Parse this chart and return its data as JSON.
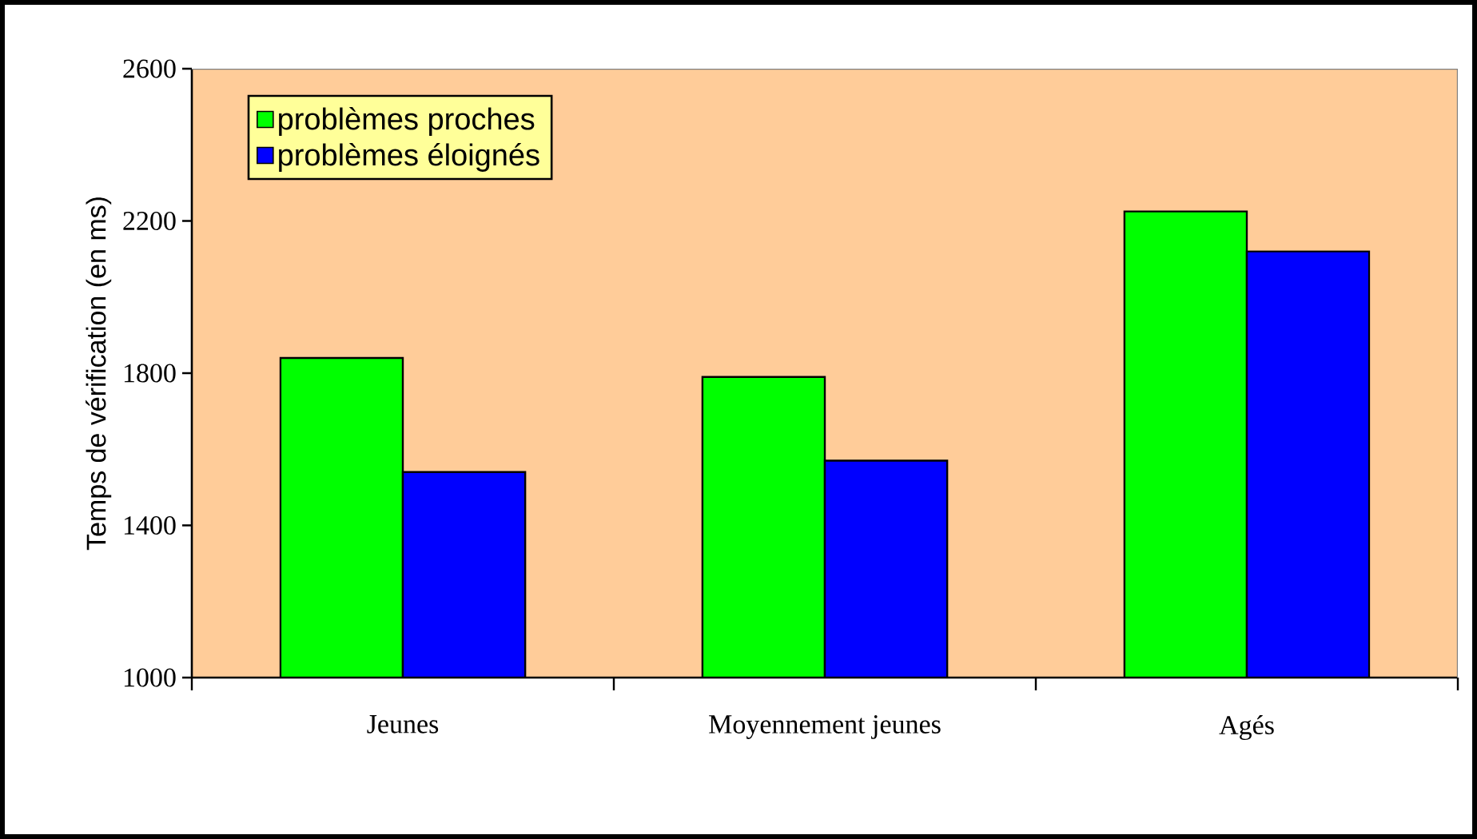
{
  "chart_data": {
    "type": "bar",
    "ylabel": "Temps de vérification (en ms)",
    "categories": [
      "Jeunes",
      "Moyennement jeunes",
      "Agés"
    ],
    "series": [
      {
        "name": "problèmes proches",
        "color": "#00ff00",
        "values": [
          1840,
          1790,
          2225
        ]
      },
      {
        "name": "problèmes éloignés",
        "color": "#0000ff",
        "values": [
          1540,
          1570,
          2120
        ]
      }
    ],
    "ylim": [
      1000,
      2600
    ],
    "yticks": [
      1000,
      1400,
      1800,
      2200,
      2600
    ],
    "legend": "top left"
  }
}
